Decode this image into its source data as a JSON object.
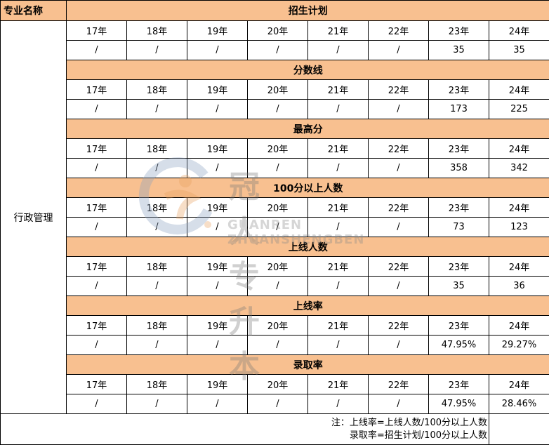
{
  "header": {
    "major_label": "专业名称"
  },
  "major": "行政管理",
  "years": [
    "17年",
    "18年",
    "19年",
    "20年",
    "21年",
    "22年",
    "23年",
    "24年"
  ],
  "sections": [
    {
      "title": "招生计划",
      "values": [
        "/",
        "/",
        "/",
        "/",
        "/",
        "/",
        "35",
        "35"
      ]
    },
    {
      "title": "分数线",
      "values": [
        "/",
        "/",
        "/",
        "/",
        "/",
        "/",
        "173",
        "225"
      ]
    },
    {
      "title": "最高分",
      "values": [
        "/",
        "/",
        "/",
        "/",
        "/",
        "/",
        "358",
        "342"
      ]
    },
    {
      "title": "100分以上人数",
      "values": [
        "/",
        "/",
        "/",
        "/",
        "/",
        "/",
        "73",
        "123"
      ]
    },
    {
      "title": "上线人数",
      "values": [
        "/",
        "/",
        "/",
        "/",
        "/",
        "/",
        "35",
        "36"
      ]
    },
    {
      "title": "上线率",
      "values": [
        "/",
        "/",
        "/",
        "/",
        "/",
        "/",
        "47.95%",
        "29.27%"
      ]
    },
    {
      "title": "录取率",
      "values": [
        "/",
        "/",
        "/",
        "/",
        "/",
        "/",
        "47.95%",
        "28.46%"
      ]
    }
  ],
  "note": {
    "line1": "注：上线率=上线人数/100分以上人数",
    "line2": "录取率=招生计划/100分以上人数"
  },
  "watermark": {
    "cn": "冠人专升本",
    "en": "GUANREN ZHUANSHENGBEN"
  },
  "colors": {
    "header_bg": "#F8C090"
  }
}
